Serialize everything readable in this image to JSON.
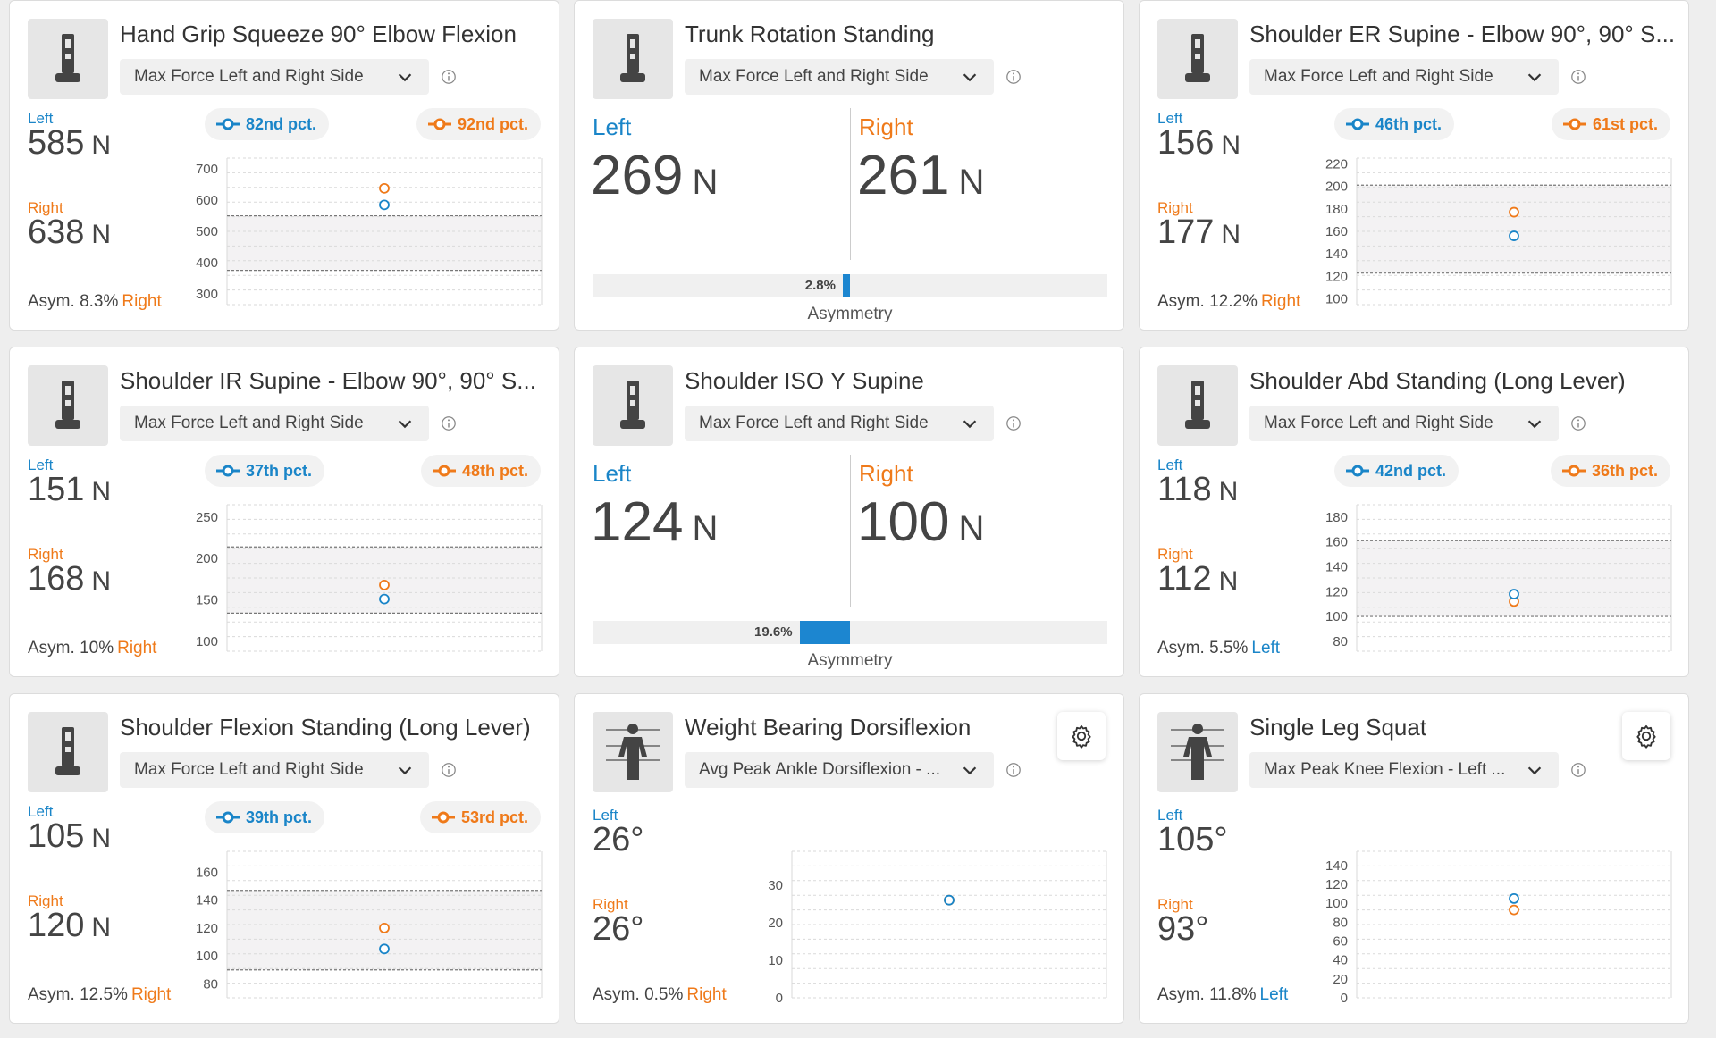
{
  "colors": {
    "left": "#1a85c8",
    "right": "#ef7a1a",
    "asym_bar": "#1c86d0"
  },
  "cards": [
    {
      "type": "percentile",
      "icon": "force-plate-icon",
      "title": "Hand Grip Squeeze 90° Elbow Flexion",
      "metric": "Max Force Left and Right Side",
      "left_label": "Left",
      "left_value": "585",
      "right_label": "Right",
      "right_value": "638",
      "unit": "N",
      "left_pct": "82nd pct.",
      "right_pct": "92nd pct.",
      "asym_label": "Asym.",
      "asym_value": "8.3%",
      "asym_side": "Right",
      "chart_data": {
        "type": "scatter",
        "ticks": [
          "700",
          "600",
          "500",
          "400",
          "300"
        ],
        "tick_values": [
          700,
          600,
          500,
          400,
          300
        ],
        "ylim": [
          265,
          735
        ],
        "band": [
          375,
          550
        ],
        "left": 585,
        "right": 638
      }
    },
    {
      "type": "asymmetry",
      "icon": "force-plate-icon",
      "title": "Trunk Rotation Standing",
      "metric": "Max Force Left and Right Side",
      "left_label": "Left",
      "left_value": "269",
      "right_label": "Right",
      "right_value": "261",
      "unit": "N",
      "asym_pct": "2.8%",
      "asym_fraction": 0.028,
      "asym_caption": "Asymmetry"
    },
    {
      "type": "percentile",
      "icon": "force-plate-icon",
      "title": "Shoulder ER Supine - Elbow 90°, 90° S...",
      "metric": "Max Force Left and Right Side",
      "left_label": "Left",
      "left_value": "156",
      "right_label": "Right",
      "right_value": "177",
      "unit": "N",
      "left_pct": "46th pct.",
      "right_pct": "61st pct.",
      "asym_label": "Asym.",
      "asym_value": "12.2%",
      "asym_side": "Right",
      "chart_data": {
        "type": "scatter",
        "ticks": [
          "220",
          "200",
          "180",
          "160",
          "140",
          "120",
          "100"
        ],
        "tick_values": [
          220,
          200,
          180,
          160,
          140,
          120,
          100
        ],
        "ylim": [
          95,
          225
        ],
        "band": [
          123,
          201
        ],
        "left": 156,
        "right": 177
      }
    },
    {
      "type": "percentile",
      "icon": "force-plate-icon",
      "title": "Shoulder IR Supine - Elbow 90°, 90° S...",
      "metric": "Max Force Left and Right Side",
      "left_label": "Left",
      "left_value": "151",
      "right_label": "Right",
      "right_value": "168",
      "unit": "N",
      "left_pct": "37th pct.",
      "right_pct": "48th pct.",
      "asym_label": "Asym.",
      "asym_value": "10%",
      "asym_side": "Right",
      "chart_data": {
        "type": "scatter",
        "ticks": [
          "250",
          "200",
          "150",
          "100"
        ],
        "tick_values": [
          250,
          200,
          150,
          100
        ],
        "ylim": [
          88,
          265
        ],
        "band": [
          134,
          214
        ],
        "left": 151,
        "right": 168
      }
    },
    {
      "type": "asymmetry",
      "icon": "force-plate-icon",
      "title": "Shoulder ISO Y Supine",
      "metric": "Max Force Left and Right Side",
      "left_label": "Left",
      "left_value": "124",
      "right_label": "Right",
      "right_value": "100",
      "unit": "N",
      "asym_pct": "19.6%",
      "asym_fraction": 0.196,
      "asym_caption": "Asymmetry"
    },
    {
      "type": "percentile",
      "icon": "force-plate-icon",
      "title": "Shoulder Abd Standing (Long Lever)",
      "metric": "Max Force Left and Right Side",
      "left_label": "Left",
      "left_value": "118",
      "right_label": "Right",
      "right_value": "112",
      "unit": "N",
      "left_pct": "42nd pct.",
      "right_pct": "36th pct.",
      "asym_label": "Asym.",
      "asym_value": "5.5%",
      "asym_side": "Left",
      "chart_data": {
        "type": "scatter",
        "ticks": [
          "180",
          "160",
          "140",
          "120",
          "100",
          "80"
        ],
        "tick_values": [
          180,
          160,
          140,
          120,
          100,
          80
        ],
        "ylim": [
          72,
          190
        ],
        "band": [
          100,
          161
        ],
        "left": 118,
        "right": 112
      }
    },
    {
      "type": "percentile",
      "icon": "force-plate-icon",
      "title": "Shoulder Flexion Standing (Long Lever)",
      "metric": "Max Force Left and Right Side",
      "left_label": "Left",
      "left_value": "105",
      "right_label": "Right",
      "right_value": "120",
      "unit": "N",
      "left_pct": "39th pct.",
      "right_pct": "53rd pct.",
      "asym_label": "Asym.",
      "asym_value": "12.5%",
      "asym_side": "Right",
      "chart_data": {
        "type": "scatter",
        "ticks": [
          "160",
          "140",
          "120",
          "100",
          "80"
        ],
        "tick_values": [
          160,
          140,
          120,
          100,
          80
        ],
        "ylim": [
          70,
          175
        ],
        "band": [
          90,
          147
        ],
        "left": 105,
        "right": 120
      }
    },
    {
      "type": "angle",
      "icon": "body-figure-icon",
      "gear": true,
      "title": "Weight Bearing Dorsiflexion",
      "metric": "Avg Peak Ankle Dorsiflexion - ...",
      "left_label": "Left",
      "left_value": "26°",
      "right_label": "Right",
      "right_value": "26°",
      "asym_label": "Asym.",
      "asym_value": "0.5%",
      "asym_side": "Right",
      "chart_data": {
        "type": "scatter",
        "ticks": [
          "30",
          "20",
          "10",
          "0"
        ],
        "tick_values": [
          30,
          20,
          10,
          0
        ],
        "ylim": [
          0,
          39
        ],
        "left": 26,
        "right": 26
      }
    },
    {
      "type": "angle",
      "icon": "body-figure-icon",
      "gear": true,
      "title": "Single Leg Squat",
      "metric": "Max Peak Knee Flexion - Left ...",
      "left_label": "Left",
      "left_value": "105°",
      "right_label": "Right",
      "right_value": "93°",
      "asym_label": "Asym.",
      "asym_value": "11.8%",
      "asym_side": "Left",
      "chart_data": {
        "type": "scatter",
        "ticks": [
          "140",
          "120",
          "100",
          "80",
          "60",
          "40",
          "20",
          "0"
        ],
        "tick_values": [
          140,
          120,
          100,
          80,
          60,
          40,
          20,
          0
        ],
        "ylim": [
          0,
          155
        ],
        "left": 105,
        "right": 93
      }
    }
  ]
}
